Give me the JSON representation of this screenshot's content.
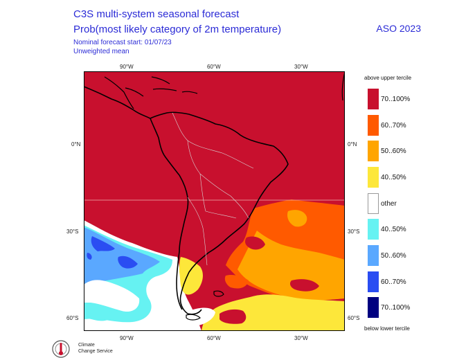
{
  "header": {
    "title_line1": "C3S multi-system seasonal forecast",
    "title_line2": "Prob(most likely category of 2m temperature)",
    "forecast_start": "Nominal forecast start: 01/07/23",
    "mean_type": "Unweighted mean",
    "period": "ASO 2023"
  },
  "axes": {
    "lon_top": [
      "90°W",
      "60°W",
      "30°W"
    ],
    "lon_bottom": [
      "90°W",
      "60°W",
      "30°W"
    ],
    "lat_left": [
      "0°N",
      "30°S",
      "60°S"
    ],
    "lat_right": [
      "0°N",
      "30°S",
      "60°S"
    ]
  },
  "legend": {
    "top_label": "above upper tercile",
    "bottom_label": "below lower tercile",
    "items": [
      {
        "label": "70..100%",
        "color": "#c8102e"
      },
      {
        "label": "60..70%",
        "color": "#ff5a00"
      },
      {
        "label": "50..60%",
        "color": "#ffa500"
      },
      {
        "label": "40..50%",
        "color": "#fde73a"
      },
      {
        "label": "other",
        "color": "#ffffff"
      },
      {
        "label": "40..50%",
        "color": "#66f2f2"
      },
      {
        "label": "50..60%",
        "color": "#5aa8ff"
      },
      {
        "label": "60..70%",
        "color": "#2a4df2"
      },
      {
        "label": "70..100%",
        "color": "#000080"
      }
    ]
  },
  "logo": {
    "line1": "Climate",
    "line2": "Change Service"
  }
}
